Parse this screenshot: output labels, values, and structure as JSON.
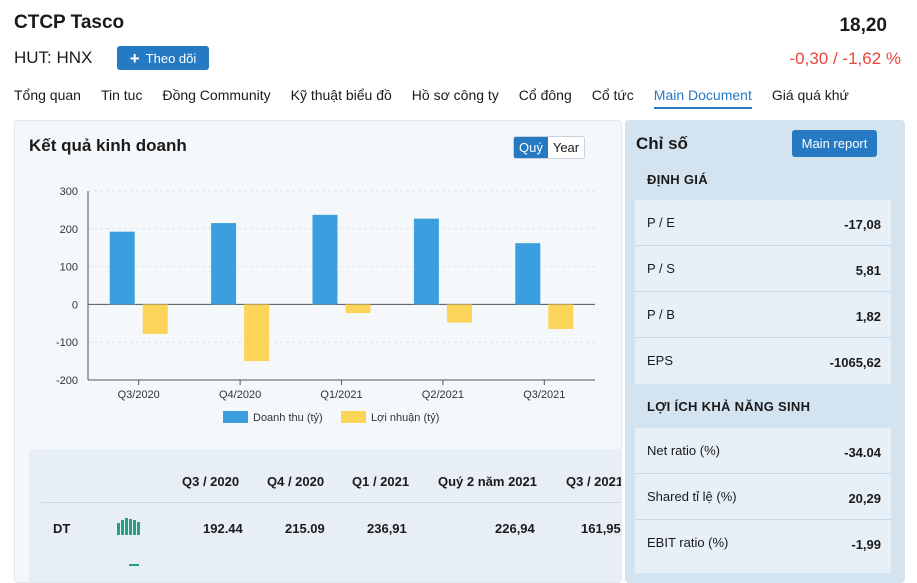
{
  "header": {
    "company": "CTCP Tasco",
    "ticker": "HUT: HNX",
    "follow_label": "Theo dõi",
    "price": "18,20",
    "change": "-0,30 / -1,62 %"
  },
  "nav": {
    "items": [
      "Tổng quan",
      "Tin tuc",
      "Đồng Community",
      "Kỹ thuật biểu đồ",
      "Hồ sơ công ty",
      "Cổ đông",
      "Cổ tức",
      "Main Document",
      "Giá quá khứ"
    ],
    "active": "Main Document"
  },
  "business": {
    "title": "Kết quả kinh doanh",
    "toggle": [
      "Quý",
      "Year"
    ],
    "toggle_active": "Quý"
  },
  "chart_data": {
    "type": "bar",
    "categories": [
      "Q3/2020",
      "Q4/2020",
      "Q1/2021",
      "Q2/2021",
      "Q3/2021"
    ],
    "series": [
      {
        "name": "Doanh thu (tỷ)",
        "values": [
          192.44,
          215.09,
          236.91,
          226.94,
          161.95
        ],
        "color": "#3b9ede"
      },
      {
        "name": "Lợi nhuận (tỷ)",
        "values": [
          -78,
          -150,
          -23,
          -48,
          -65
        ],
        "color": "#fdd45a"
      }
    ],
    "yticks": [
      "300",
      "200",
      "100",
      "0",
      "-100",
      "-200"
    ],
    "ylim": [
      -200,
      300
    ],
    "grid": true,
    "legend": "bottom"
  },
  "table": {
    "headers": [
      "Q3 / 2020",
      "Q4 / 2020",
      "Q1 / 2021",
      "Quý 2 năm 2021",
      "Q3 / 2021"
    ],
    "rows": [
      {
        "label": "DT",
        "values": [
          "192.44",
          "215.09",
          "236,91",
          "226,94",
          "161,95"
        ]
      }
    ]
  },
  "indicators": {
    "title": "Chỉ số",
    "report_button": "Main report",
    "valuation_heading": "ĐỊNH GIÁ",
    "valuation": [
      {
        "label": "P / E",
        "value": "-17,08"
      },
      {
        "label": "P / S",
        "value": "5,81"
      },
      {
        "label": "P / B",
        "value": "1,82"
      },
      {
        "label": "EPS",
        "value": "-1065,62"
      }
    ],
    "profit_heading": "LỢI ÍCH KHẢ NĂNG SINH",
    "profitability": [
      {
        "label": "Net ratio (%)",
        "value": "-34.04"
      },
      {
        "label": "Shared tỉ lệ (%)",
        "value": "20,29"
      },
      {
        "label": "EBIT ratio (%)",
        "value": "-1,99"
      }
    ]
  },
  "colors": {
    "accent": "#2679c3",
    "negative": "#e8453c",
    "revenue": "#3b9ede",
    "profit": "#fdd45a",
    "spark": "#23a27c"
  }
}
